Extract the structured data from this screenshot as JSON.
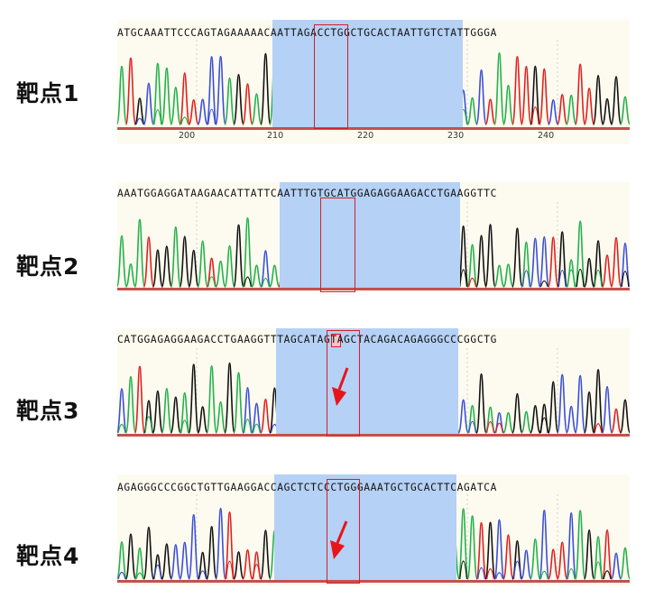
{
  "targets": [
    {
      "label": "靶点1",
      "sequence": "ATGCAAATTCCCAGTAGAAAAACAATTAGACCTGGCTGCACTAATTGTCTATTGGGA",
      "ticks": [
        "200",
        "210",
        "220",
        "230",
        "240"
      ],
      "has_arrow": false,
      "highlighted_base": null
    },
    {
      "label": "靶点2",
      "sequence": "AAATGGAGGATAAGAACATTATTCAATTTGTGCATGGAGAGGAAGACCTGAAGGTTC",
      "ticks": [],
      "has_arrow": false,
      "highlighted_base": null
    },
    {
      "label": "靶点3",
      "sequence": "CATGGAGAGGAAGACCTGAAGGTTTAGCATAGTAGCTACAGACAGAGGGCCCGGCTG",
      "ticks": [],
      "has_arrow": true,
      "highlighted_base": "T"
    },
    {
      "label": "靶点4",
      "sequence": "AGAGGGCCCGGCTGTTGAAGGACCAGCTCTCCCTGGGAAATGCTGCACTTCAGATCA",
      "ticks": [],
      "has_arrow": true,
      "highlighted_base": null
    }
  ],
  "colors": {
    "A": "#22b14c",
    "C": "#3a4fd8",
    "G": "#111111",
    "T": "#e02020",
    "highlight": "#b5d1f5",
    "box": "#d0202a",
    "arrow": "#e8141c"
  }
}
